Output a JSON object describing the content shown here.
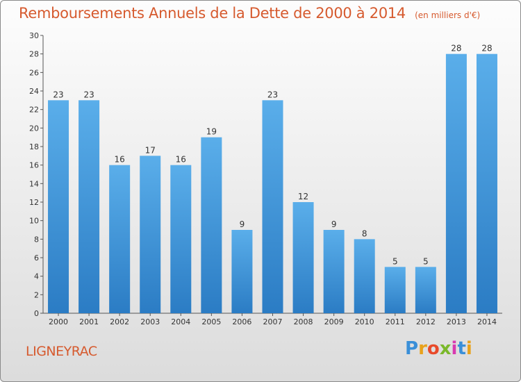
{
  "title": "Remboursements Annuels de la Dette de 2000 à 2014",
  "unit": "(en milliers d'€)",
  "commune": "LIGNEYRAC",
  "logo": {
    "letters": [
      "P",
      "r",
      "o",
      "x",
      "i",
      "t",
      "i"
    ],
    "colors": [
      "#3a8fd8",
      "#e8a21c",
      "#e84a2a",
      "#7ab82a",
      "#d83ab0",
      "#3a8fd8",
      "#e8a21c"
    ]
  },
  "colors": {
    "bar_light": "#5aaeea",
    "bar_dark": "#2b7cc4",
    "title": "#d65a2e"
  },
  "chart_data": {
    "type": "bar",
    "title": "Remboursements Annuels de la Dette de 2000 à 2014",
    "xlabel": "",
    "ylabel": "",
    "ylim": [
      0,
      30
    ],
    "yticks": [
      0,
      2,
      4,
      6,
      8,
      10,
      12,
      14,
      16,
      18,
      20,
      22,
      24,
      26,
      28,
      30
    ],
    "grid": false,
    "categories": [
      "2000",
      "2001",
      "2002",
      "2003",
      "2004",
      "2005",
      "2006",
      "2007",
      "2008",
      "2009",
      "2010",
      "2011",
      "2012",
      "2013",
      "2014"
    ],
    "values": [
      23,
      23,
      16,
      17,
      16,
      19,
      9,
      23,
      12,
      9,
      8,
      5,
      5,
      28,
      28
    ]
  }
}
